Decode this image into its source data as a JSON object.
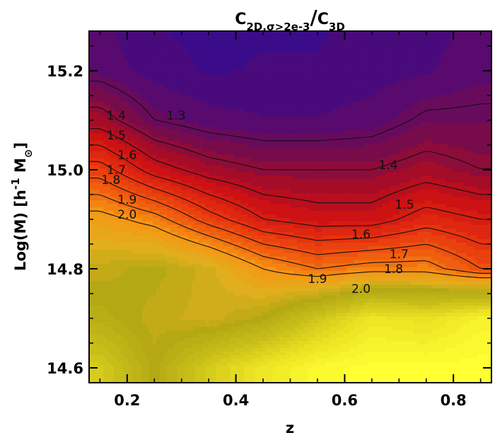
{
  "chart_data": {
    "type": "heatmap",
    "title": {
      "numerator": "C",
      "numerator_sub": "2D,σ>2e-3",
      "denominator": "C",
      "denominator_sub": "3D"
    },
    "xlabel": "z",
    "ylabel": {
      "main": "Log(M)  [h",
      "sup": "-1",
      "tail": " M",
      "sun": "⊙",
      "close": "]"
    },
    "xlim": [
      0.13,
      0.87
    ],
    "ylim": [
      14.57,
      15.28
    ],
    "xticks": [
      "0.2",
      "0.4",
      "0.6",
      "0.8"
    ],
    "yticks": [
      "14.6",
      "14.8",
      "15.0",
      "15.2"
    ],
    "x": [
      0.15,
      0.25,
      0.35,
      0.45,
      0.55,
      0.65,
      0.75,
      0.85
    ],
    "y": [
      14.6,
      14.7,
      14.8,
      14.9,
      15.0,
      15.1,
      15.2,
      15.28
    ],
    "z": [
      [
        2.6,
        2.3,
        2.6,
        2.8,
        2.95,
        3.0,
        3.0,
        3.0
      ],
      [
        2.35,
        2.25,
        2.2,
        2.3,
        2.55,
        2.8,
        2.75,
        2.9
      ],
      [
        2.25,
        2.3,
        2.2,
        2.0,
        1.9,
        1.95,
        1.95,
        1.8
      ],
      [
        2.05,
        1.95,
        1.75,
        1.6,
        1.55,
        1.55,
        1.65,
        1.6
      ],
      [
        1.75,
        1.55,
        1.45,
        1.4,
        1.4,
        1.4,
        1.45,
        1.4
      ],
      [
        1.45,
        1.3,
        1.25,
        1.23,
        1.23,
        1.25,
        1.32,
        1.32
      ],
      [
        1.26,
        1.2,
        1.17,
        1.18,
        1.18,
        1.2,
        1.22,
        1.26
      ],
      [
        1.24,
        1.18,
        1.16,
        1.17,
        1.17,
        1.19,
        1.2,
        1.25
      ]
    ],
    "contour_levels": [
      1.3,
      1.4,
      1.5,
      1.6,
      1.7,
      1.8,
      1.9,
      2.0
    ],
    "contour_labels": [
      {
        "text": "1.3",
        "x": 0.29,
        "y": 15.11
      },
      {
        "text": "1.4",
        "x": 0.18,
        "y": 15.11
      },
      {
        "text": "1.5",
        "x": 0.18,
        "y": 15.07
      },
      {
        "text": "1.6",
        "x": 0.2,
        "y": 15.03
      },
      {
        "text": "1.7",
        "x": 0.18,
        "y": 15.0
      },
      {
        "text": "1.8",
        "x": 0.17,
        "y": 14.98
      },
      {
        "text": "1.9",
        "x": 0.2,
        "y": 14.94
      },
      {
        "text": "2.0",
        "x": 0.2,
        "y": 14.91
      },
      {
        "text": "1.4",
        "x": 0.68,
        "y": 15.01
      },
      {
        "text": "1.5",
        "x": 0.71,
        "y": 14.93
      },
      {
        "text": "1.6",
        "x": 0.63,
        "y": 14.87
      },
      {
        "text": "1.7",
        "x": 0.7,
        "y": 14.83
      },
      {
        "text": "1.8",
        "x": 0.69,
        "y": 14.8
      },
      {
        "text": "1.9",
        "x": 0.55,
        "y": 14.78
      },
      {
        "text": "2.0",
        "x": 0.63,
        "y": 14.76
      }
    ],
    "colorscale": "purple-red-orange-yellow",
    "colors": {
      "low": "#3a0c8a",
      "mid_low": "#7a1050",
      "mid": "#d21414",
      "mid_high": "#f08a10",
      "olive": "#a8a214",
      "high": "#ffff30"
    },
    "grid": false
  }
}
